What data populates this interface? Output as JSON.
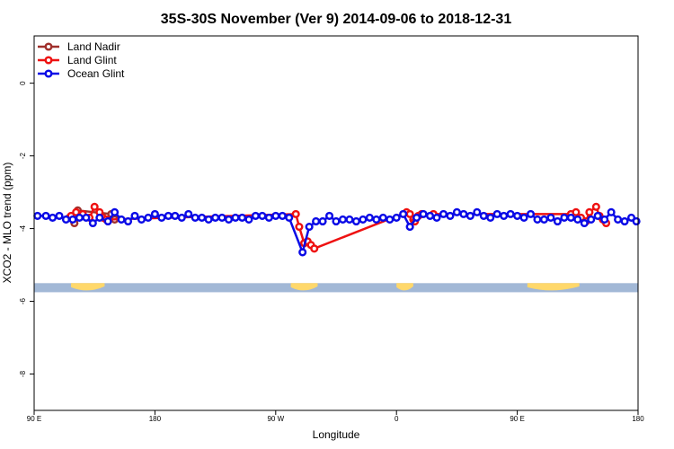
{
  "chart_data": {
    "type": "line",
    "title": "35S-30S November (Ver 9)   2014-09-06 to 2018-12-31",
    "xlabel": "Longitude",
    "ylabel": "XCO2 - MLO trend (ppm)",
    "xlim": [
      90,
      450
    ],
    "ylim": [
      -9.0,
      1.3
    ],
    "x_ticks": [
      {
        "value": 90,
        "label": "90 E"
      },
      {
        "value": 162,
        "label": "180"
      },
      {
        "value": 234,
        "label": "90 W"
      },
      {
        "value": 306,
        "label": "0"
      },
      {
        "value": 378,
        "label": "90 E"
      },
      {
        "value": 450,
        "label": "180"
      }
    ],
    "y_ticks": [
      {
        "value": 0,
        "label": "0"
      },
      {
        "value": -2,
        "label": "-2"
      },
      {
        "value": -4,
        "label": "-4"
      },
      {
        "value": -6,
        "label": "-6"
      },
      {
        "value": -8,
        "label": "-8"
      }
    ],
    "land_band": {
      "y_top": -5.5,
      "y_bottom": -5.75,
      "ocean_color": "#a2b8d6",
      "land_color": "#ffd86b",
      "land_ranges": [
        [
          112,
          132
        ],
        [
          243,
          259
        ],
        [
          306,
          316
        ],
        [
          384,
          415
        ]
      ]
    },
    "series": [
      {
        "name": "Land Nadir",
        "color": "#a0302c",
        "x": [
          111,
          114,
          116,
          136,
          138
        ],
        "y": [
          -3.7,
          -3.85,
          -3.5,
          -3.6,
          -3.75
        ]
      },
      {
        "name": "Land Glint",
        "color": "#ee1111",
        "x": [
          112,
          115,
          119,
          123,
          126,
          129,
          131,
          133,
          246,
          248,
          251,
          253,
          255,
          257,
          312,
          314,
          316,
          317,
          319,
          321,
          328,
          410,
          413,
          416,
          419,
          421,
          425,
          427,
          429,
          431
        ],
        "y": [
          -3.65,
          -3.55,
          -3.6,
          -3.7,
          -3.4,
          -3.55,
          -3.7,
          -3.75,
          -3.6,
          -3.95,
          -4.4,
          -4.35,
          -4.45,
          -4.55,
          -3.55,
          -3.6,
          -3.75,
          -3.8,
          -3.65,
          -3.6,
          -3.6,
          -3.6,
          -3.55,
          -3.7,
          -3.8,
          -3.55,
          -3.4,
          -3.65,
          -3.75,
          -3.85
        ]
      },
      {
        "name": "Ocean Glint",
        "color": "#0a0ae6",
        "x": [
          92,
          97,
          101,
          105,
          109,
          113,
          117,
          121,
          125,
          129,
          134,
          138,
          142,
          146,
          150,
          154,
          158,
          162,
          166,
          170,
          174,
          178,
          182,
          186,
          190,
          194,
          198,
          202,
          206,
          210,
          214,
          218,
          222,
          226,
          230,
          234,
          238,
          242,
          250,
          254,
          258,
          262,
          266,
          270,
          274,
          278,
          282,
          286,
          290,
          294,
          298,
          302,
          306,
          310,
          314,
          318,
          322,
          326,
          330,
          334,
          338,
          342,
          346,
          350,
          354,
          358,
          362,
          366,
          370,
          374,
          378,
          382,
          386,
          390,
          394,
          398,
          402,
          406,
          410,
          414,
          418,
          422,
          426,
          430,
          434,
          438,
          442,
          446,
          449
        ],
        "y": [
          -3.65,
          -3.65,
          -3.7,
          -3.65,
          -3.75,
          -3.75,
          -3.7,
          -3.7,
          -3.85,
          -3.7,
          -3.8,
          -3.55,
          -3.75,
          -3.8,
          -3.65,
          -3.75,
          -3.7,
          -3.6,
          -3.7,
          -3.65,
          -3.65,
          -3.7,
          -3.6,
          -3.7,
          -3.7,
          -3.75,
          -3.7,
          -3.7,
          -3.75,
          -3.7,
          -3.7,
          -3.75,
          -3.65,
          -3.65,
          -3.7,
          -3.65,
          -3.65,
          -3.7,
          -4.65,
          -3.95,
          -3.8,
          -3.8,
          -3.65,
          -3.8,
          -3.75,
          -3.75,
          -3.8,
          -3.75,
          -3.7,
          -3.75,
          -3.7,
          -3.75,
          -3.7,
          -3.6,
          -3.95,
          -3.7,
          -3.6,
          -3.65,
          -3.7,
          -3.6,
          -3.65,
          -3.55,
          -3.6,
          -3.65,
          -3.55,
          -3.65,
          -3.7,
          -3.6,
          -3.65,
          -3.6,
          -3.65,
          -3.7,
          -3.6,
          -3.75,
          -3.75,
          -3.7,
          -3.8,
          -3.7,
          -3.7,
          -3.75,
          -3.85,
          -3.75,
          -3.65,
          -3.75,
          -3.55,
          -3.75,
          -3.8,
          -3.7,
          -3.8
        ]
      }
    ]
  }
}
